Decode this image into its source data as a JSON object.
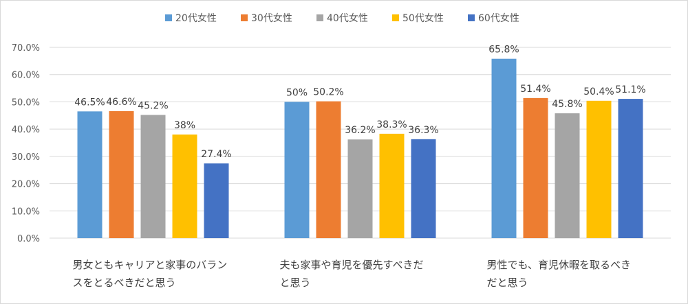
{
  "chart_data": {
    "type": "bar",
    "categories": [
      "男女ともキャリアと家事のバランスをとるべきだと思う",
      "夫も家事や育児を優先すべきだと思う",
      "男性でも、育児休暇を取るべきだと思う"
    ],
    "category_lines": [
      [
        "男女ともキャリアと家事のバラン",
        "スをとるべきだと思う"
      ],
      [
        "夫も家事や育児を優先すべきだ",
        "と思う"
      ],
      [
        "男性でも、育児休暇を取るべき",
        "だと思う"
      ]
    ],
    "series": [
      {
        "name": "20代女性",
        "color": "#5b9bd5",
        "values": [
          46.5,
          50.0,
          65.8
        ],
        "labels": [
          "46.5%",
          "50%",
          "65.8%"
        ]
      },
      {
        "name": "30代女性",
        "color": "#ed7d31",
        "values": [
          46.6,
          50.2,
          51.4
        ],
        "labels": [
          "46.6%",
          "50.2%",
          "51.4%"
        ]
      },
      {
        "name": "40代女性",
        "color": "#a5a5a5",
        "values": [
          45.2,
          36.2,
          45.8
        ],
        "labels": [
          "45.2%",
          "36.2%",
          "45.8%"
        ]
      },
      {
        "name": "50代女性",
        "color": "#ffc000",
        "values": [
          38.0,
          38.3,
          50.4
        ],
        "labels": [
          "38%",
          "38.3%",
          "50.4%"
        ]
      },
      {
        "name": "60代女性",
        "color": "#4472c4",
        "values": [
          27.4,
          36.3,
          51.1
        ],
        "labels": [
          "27.4%",
          "36.3%",
          "51.1%"
        ]
      }
    ],
    "ylim": [
      0,
      70
    ],
    "yticks": [
      "0.0%",
      "10.0%",
      "20.0%",
      "30.0%",
      "40.0%",
      "50.0%",
      "60.0%",
      "70.0%"
    ],
    "grid": true,
    "legend": "top-center",
    "title": "",
    "xlabel": "",
    "ylabel": ""
  }
}
